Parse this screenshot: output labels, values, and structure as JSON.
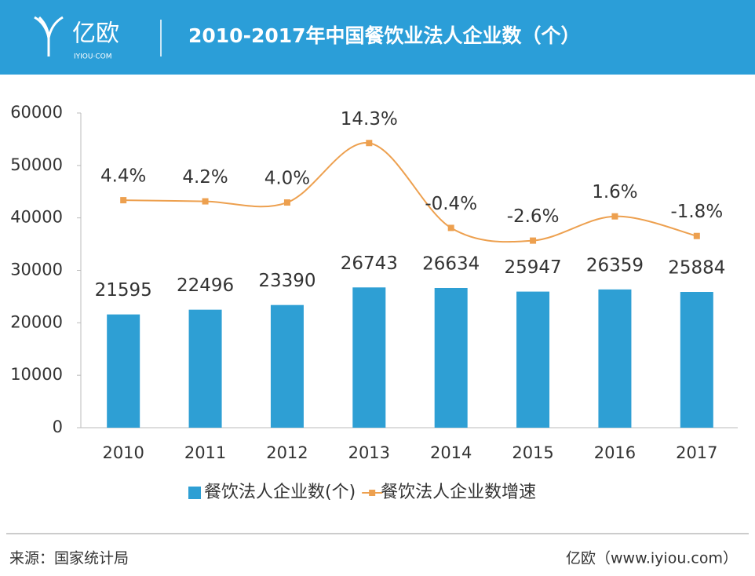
{
  "header": {
    "logo": "亿欧",
    "logo_sub": "IYIOU·COM"
  },
  "chart_data": {
    "type": "combo",
    "title": "2010-2017年中国餐饮业法人企业数（个）",
    "categories": [
      "2010",
      "2011",
      "2012",
      "2013",
      "2014",
      "2015",
      "2016",
      "2017"
    ],
    "series": [
      {
        "name": "餐饮法人企业数(个)",
        "type": "bar",
        "color": "#2e9fd4",
        "values": [
          21595,
          22496,
          23390,
          26743,
          26634,
          25947,
          26359,
          25884
        ]
      },
      {
        "name": "餐饮法人企业数增速",
        "type": "line",
        "axis": "y2",
        "color": "#eda04f",
        "values": [
          4.4,
          4.2,
          4.0,
          14.3,
          -0.4,
          -2.6,
          1.6,
          -1.8
        ],
        "value_labels": [
          "4.4%",
          "4.2%",
          "4.0%",
          "14.3%",
          "-0.4%",
          "-2.6%",
          "1.6%",
          "-1.8%"
        ]
      }
    ],
    "ylim": [
      0,
      60000
    ],
    "yticks": [
      0,
      10000,
      20000,
      30000,
      40000,
      50000,
      60000
    ],
    "y2lim": [
      -35,
      19.5
    ],
    "grid": false,
    "legend": "bottom"
  },
  "footer": {
    "source": "来源：国家统计局",
    "site": "亿欧（www.iyiou.com）"
  }
}
